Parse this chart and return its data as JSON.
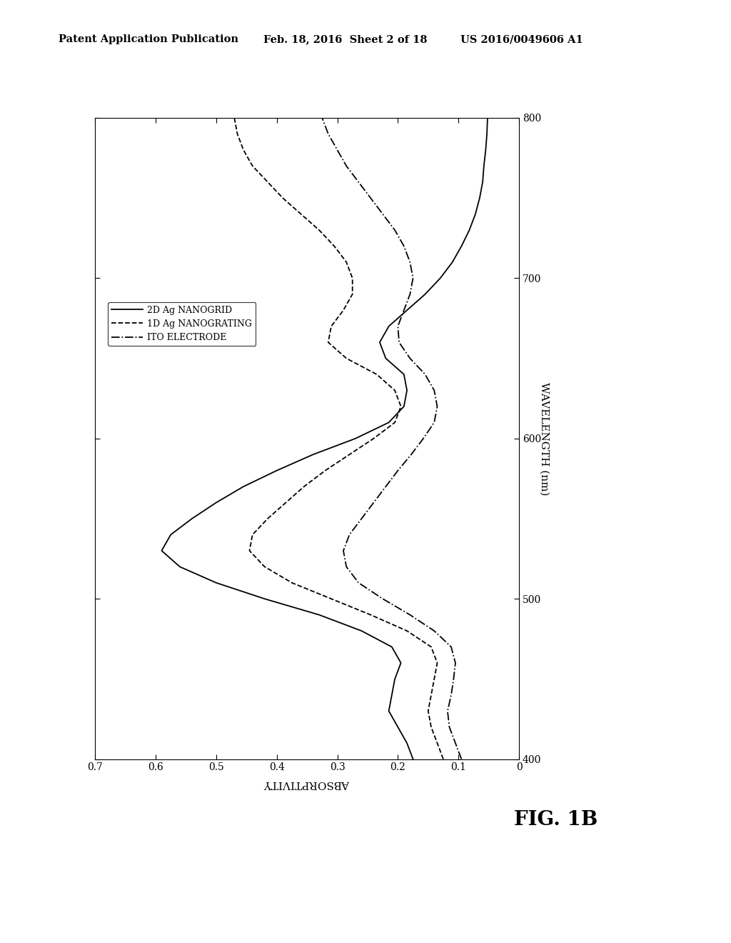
{
  "header_left": "Patent Application Publication",
  "header_mid": "Feb. 18, 2016  Sheet 2 of 18",
  "header_right": "US 2016/0049606 A1",
  "fig_label": "FIG. 1B",
  "wavelength_label": "WAVELENGTH (nm)",
  "absorptivity_label": "ABSORPTIVITY",
  "legend_entries": [
    "2D Ag NANOGRID",
    "1D Ag NANOGRATING",
    "ITO ELECTRODE"
  ],
  "background_color": "#ffffff",
  "wavelengths": [
    400,
    410,
    420,
    430,
    440,
    450,
    460,
    470,
    480,
    490,
    500,
    510,
    520,
    530,
    540,
    550,
    560,
    570,
    580,
    590,
    600,
    610,
    620,
    630,
    640,
    650,
    660,
    670,
    680,
    690,
    700,
    710,
    720,
    730,
    740,
    750,
    760,
    770,
    780,
    790,
    800
  ],
  "absorptivity_2d": [
    0.175,
    0.185,
    0.2,
    0.215,
    0.21,
    0.205,
    0.195,
    0.21,
    0.26,
    0.33,
    0.42,
    0.5,
    0.56,
    0.59,
    0.575,
    0.54,
    0.5,
    0.455,
    0.4,
    0.34,
    0.27,
    0.215,
    0.19,
    0.185,
    0.19,
    0.22,
    0.23,
    0.215,
    0.185,
    0.155,
    0.13,
    0.11,
    0.095,
    0.082,
    0.072,
    0.065,
    0.06,
    0.058,
    0.055,
    0.053,
    0.052
  ],
  "absorptivity_1d": [
    0.125,
    0.135,
    0.145,
    0.15,
    0.145,
    0.14,
    0.135,
    0.145,
    0.185,
    0.245,
    0.31,
    0.375,
    0.42,
    0.445,
    0.44,
    0.415,
    0.385,
    0.355,
    0.32,
    0.28,
    0.24,
    0.205,
    0.195,
    0.205,
    0.235,
    0.285,
    0.315,
    0.31,
    0.29,
    0.275,
    0.275,
    0.285,
    0.305,
    0.33,
    0.36,
    0.39,
    0.415,
    0.44,
    0.455,
    0.465,
    0.47
  ],
  "absorptivity_ito": [
    0.095,
    0.105,
    0.115,
    0.118,
    0.112,
    0.108,
    0.105,
    0.112,
    0.14,
    0.18,
    0.225,
    0.265,
    0.285,
    0.29,
    0.28,
    0.26,
    0.24,
    0.22,
    0.2,
    0.178,
    0.158,
    0.14,
    0.135,
    0.14,
    0.155,
    0.18,
    0.198,
    0.2,
    0.19,
    0.18,
    0.175,
    0.18,
    0.19,
    0.205,
    0.225,
    0.245,
    0.265,
    0.285,
    0.3,
    0.315,
    0.325
  ]
}
